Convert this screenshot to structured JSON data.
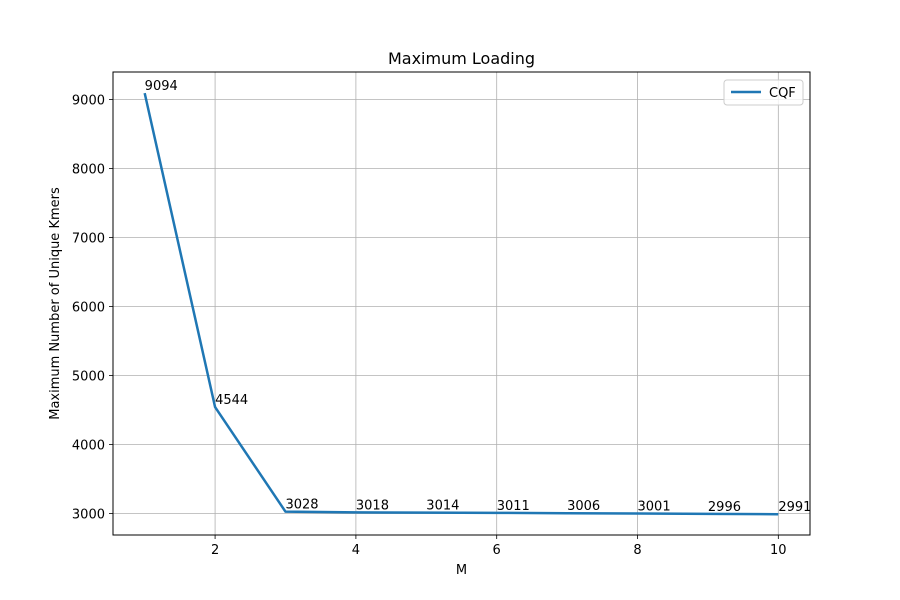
{
  "chart_data": {
    "type": "line",
    "title": "Maximum Loading",
    "xlabel": "M",
    "ylabel": "Maximum Number of Unique Kmers",
    "xlim": [
      0.55,
      10.45
    ],
    "ylim": [
      2690,
      9400
    ],
    "xticks": [
      2,
      4,
      6,
      8,
      10
    ],
    "yticks": [
      3000,
      4000,
      5000,
      6000,
      7000,
      8000,
      9000
    ],
    "grid": true,
    "legend_position": "top-right",
    "series": [
      {
        "name": "CQF",
        "color": "#1f77b4",
        "x": [
          1,
          2,
          3,
          4,
          5,
          6,
          7,
          8,
          9,
          10
        ],
        "y": [
          9094,
          4544,
          3028,
          3018,
          3014,
          3011,
          3006,
          3001,
          2996,
          2991
        ]
      }
    ],
    "data_labels": [
      "9094",
      "4544",
      "3028",
      "3018",
      "3014",
      "3011",
      "3006",
      "3001",
      "2996",
      "2991"
    ]
  }
}
